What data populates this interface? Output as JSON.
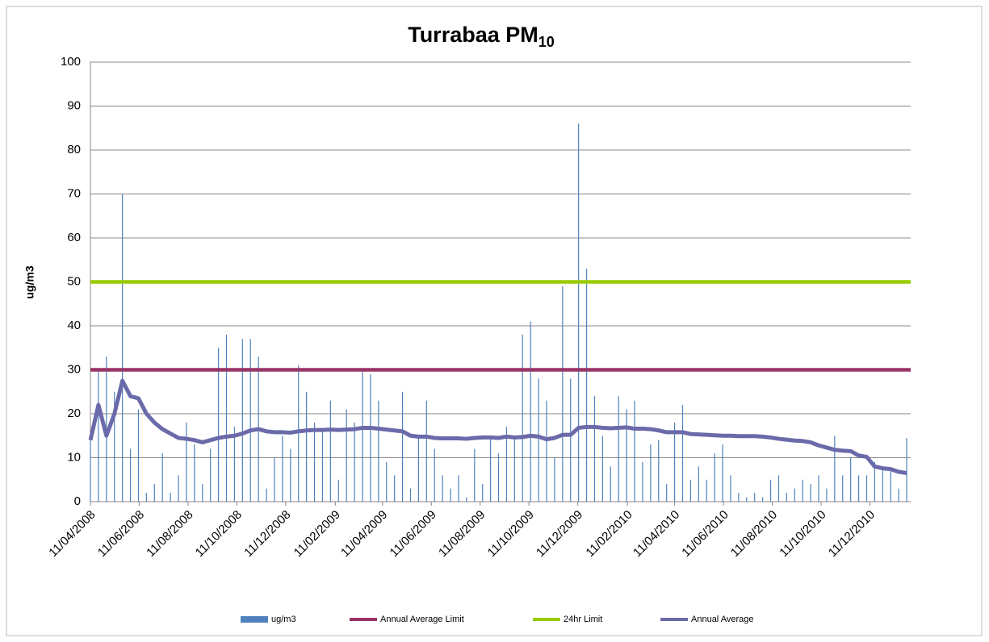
{
  "chart_data": {
    "type": "bar_line",
    "title": "Turrabaa PM",
    "title_subscript": "10",
    "y_label": "ug/m3",
    "ylim": [
      0,
      100
    ],
    "yticks": [
      0,
      10,
      20,
      30,
      40,
      50,
      60,
      70,
      80,
      90,
      100
    ],
    "grid": true,
    "legend": "bottom",
    "xlim": [
      "2008-04-11",
      "2011-01-31"
    ],
    "xticks": [
      {
        "value": "2008-04-11",
        "label": "11/04/2008"
      },
      {
        "value": "2008-06-11",
        "label": "11/06/2008"
      },
      {
        "value": "2008-08-11",
        "label": "11/08/2008"
      },
      {
        "value": "2008-10-11",
        "label": "11/10/2008"
      },
      {
        "value": "2008-12-11",
        "label": "11/12/2008"
      },
      {
        "value": "2009-02-11",
        "label": "11/02/2009"
      },
      {
        "value": "2009-04-11",
        "label": "11/04/2009"
      },
      {
        "value": "2009-06-11",
        "label": "11/06/2009"
      },
      {
        "value": "2009-08-11",
        "label": "11/08/2009"
      },
      {
        "value": "2009-10-11",
        "label": "11/10/2009"
      },
      {
        "value": "2009-12-11",
        "label": "11/12/2009"
      },
      {
        "value": "2010-02-11",
        "label": "11/02/2010"
      },
      {
        "value": "2010-04-11",
        "label": "11/04/2010"
      },
      {
        "value": "2010-06-11",
        "label": "11/06/2010"
      },
      {
        "value": "2010-08-11",
        "label": "11/08/2010"
      },
      {
        "value": "2010-10-11",
        "label": "11/10/2010"
      },
      {
        "value": "2010-12-11",
        "label": "11/12/2010"
      }
    ],
    "x": [
      "2008-04-11",
      "2008-04-21",
      "2008-05-01",
      "2008-05-11",
      "2008-05-21",
      "2008-05-31",
      "2008-06-10",
      "2008-06-20",
      "2008-06-30",
      "2008-07-10",
      "2008-07-20",
      "2008-07-30",
      "2008-08-09",
      "2008-08-19",
      "2008-08-29",
      "2008-09-08",
      "2008-09-18",
      "2008-09-28",
      "2008-10-08",
      "2008-10-18",
      "2008-10-28",
      "2008-11-07",
      "2008-11-17",
      "2008-11-27",
      "2008-12-07",
      "2008-12-17",
      "2008-12-27",
      "2009-01-06",
      "2009-01-16",
      "2009-01-26",
      "2009-02-05",
      "2009-02-15",
      "2009-02-25",
      "2009-03-07",
      "2009-03-17",
      "2009-03-27",
      "2009-04-06",
      "2009-04-16",
      "2009-04-26",
      "2009-05-06",
      "2009-05-16",
      "2009-05-26",
      "2009-06-05",
      "2009-06-15",
      "2009-06-25",
      "2009-07-05",
      "2009-07-15",
      "2009-07-25",
      "2009-08-04",
      "2009-08-14",
      "2009-08-24",
      "2009-09-03",
      "2009-09-13",
      "2009-09-23",
      "2009-10-03",
      "2009-10-13",
      "2009-10-23",
      "2009-11-02",
      "2009-11-12",
      "2009-11-22",
      "2009-12-02",
      "2009-12-12",
      "2009-12-22",
      "2010-01-01",
      "2010-01-11",
      "2010-01-21",
      "2010-01-31",
      "2010-02-10",
      "2010-02-20",
      "2010-03-02",
      "2010-03-12",
      "2010-03-22",
      "2010-04-01",
      "2010-04-11",
      "2010-04-21",
      "2010-05-01",
      "2010-05-11",
      "2010-05-21",
      "2010-05-31",
      "2010-06-10",
      "2010-06-20",
      "2010-06-30",
      "2010-07-10",
      "2010-07-20",
      "2010-07-30",
      "2010-08-09",
      "2010-08-19",
      "2010-08-29",
      "2010-09-08",
      "2010-09-18",
      "2010-09-28",
      "2010-10-08",
      "2010-10-18",
      "2010-10-28",
      "2010-11-07",
      "2010-11-17",
      "2010-11-27",
      "2010-12-07",
      "2010-12-17",
      "2010-12-27",
      "2011-01-06",
      "2011-01-16",
      "2011-01-26"
    ],
    "series": [
      {
        "name": "ug/m3",
        "kind": "bar",
        "color": "#4f81bd",
        "values": [
          14,
          30,
          33,
          25,
          70,
          12,
          21,
          2,
          4,
          11,
          2,
          6,
          18,
          13,
          4,
          12,
          35,
          38,
          17,
          37,
          37,
          33,
          3,
          10,
          15,
          12,
          31,
          25,
          18,
          16,
          23,
          5,
          21,
          18,
          30,
          29,
          23,
          9,
          6,
          25,
          3,
          15,
          23,
          12,
          6,
          3,
          6,
          1,
          12,
          4,
          15,
          11,
          17,
          15,
          38,
          41,
          28,
          23,
          10,
          49,
          28,
          86,
          53,
          24,
          15,
          8,
          24,
          21,
          23,
          9,
          13,
          14,
          4,
          18,
          22,
          5,
          8,
          5,
          11,
          13,
          6,
          2,
          1,
          2,
          1,
          5,
          6,
          2,
          3,
          5,
          4,
          6,
          3,
          15,
          6,
          10,
          6,
          6,
          9,
          8,
          7,
          3,
          14.5
        ]
      },
      {
        "name": "Annual Average Limit",
        "kind": "hline",
        "color": "#993366",
        "value": 30
      },
      {
        "name": "24hr Limit",
        "kind": "hline",
        "color": "#99cc00",
        "value": 50
      },
      {
        "name": "Annual Average",
        "kind": "line",
        "color": "#6a6aaa",
        "values": [
          14,
          22,
          15,
          20,
          27.5,
          24,
          23.5,
          20,
          18,
          16.5,
          15.5,
          14.5,
          14.3,
          14,
          13.5,
          14,
          14.5,
          14.8,
          15,
          15.5,
          16.2,
          16.5,
          16,
          15.8,
          15.8,
          15.7,
          16,
          16.2,
          16.3,
          16.3,
          16.4,
          16.3,
          16.4,
          16.5,
          16.8,
          16.8,
          16.6,
          16.4,
          16.2,
          16,
          15,
          14.8,
          14.8,
          14.5,
          14.4,
          14.4,
          14.4,
          14.3,
          14.5,
          14.6,
          14.6,
          14.5,
          14.8,
          14.6,
          14.7,
          15,
          14.8,
          14.2,
          14.5,
          15.2,
          15.2,
          16.8,
          17,
          17,
          16.8,
          16.7,
          16.8,
          16.9,
          16.6,
          16.6,
          16.5,
          16.2,
          15.8,
          15.8,
          15.8,
          15.4,
          15.3,
          15.2,
          15.1,
          15,
          15,
          14.9,
          14.9,
          14.9,
          14.8,
          14.6,
          14.3,
          14.1,
          13.9,
          13.8,
          13.5,
          12.8,
          12.3,
          11.8,
          11.6,
          11.5,
          10.5,
          10.2,
          8,
          7.6,
          7.4,
          6.8,
          6.5
        ]
      }
    ]
  }
}
